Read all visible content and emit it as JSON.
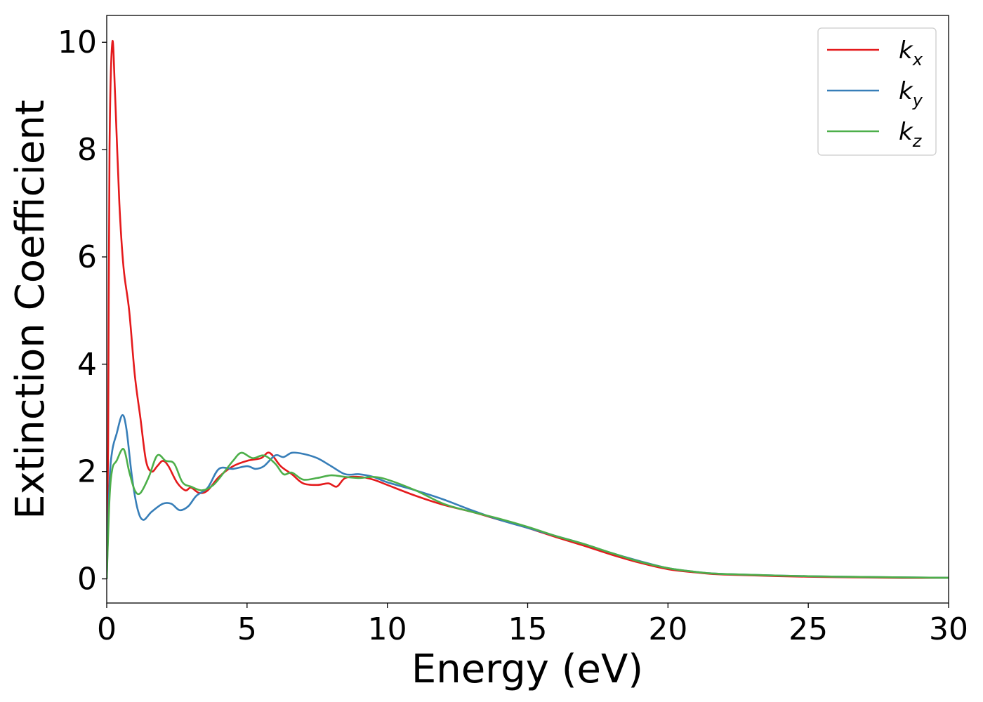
{
  "chart_data": {
    "type": "line",
    "title": "",
    "xlabel": "Energy (eV)",
    "ylabel": "Extinction Coefficient",
    "xlim": [
      0,
      30
    ],
    "ylim": [
      -0.45,
      10.5
    ],
    "xticks": [
      0,
      5,
      10,
      15,
      20,
      25,
      30
    ],
    "yticks": [
      0,
      2,
      4,
      6,
      8,
      10
    ],
    "grid": false,
    "legend_position": "top-right",
    "series": [
      {
        "name": "k",
        "subscript": "x",
        "color": "#e41a1c",
        "points": [
          [
            0,
            0
          ],
          [
            0.05,
            2.5
          ],
          [
            0.1,
            8
          ],
          [
            0.2,
            10
          ],
          [
            0.3,
            9
          ],
          [
            0.45,
            7
          ],
          [
            0.6,
            5.8
          ],
          [
            0.8,
            5
          ],
          [
            1.0,
            3.8
          ],
          [
            1.2,
            3
          ],
          [
            1.4,
            2.2
          ],
          [
            1.6,
            2.0
          ],
          [
            1.8,
            2.1
          ],
          [
            2.0,
            2.2
          ],
          [
            2.2,
            2.1
          ],
          [
            2.5,
            1.8
          ],
          [
            2.8,
            1.65
          ],
          [
            3.0,
            1.7
          ],
          [
            3.3,
            1.6
          ],
          [
            3.6,
            1.65
          ],
          [
            4.0,
            1.9
          ],
          [
            4.5,
            2.1
          ],
          [
            5.0,
            2.2
          ],
          [
            5.5,
            2.25
          ],
          [
            5.8,
            2.35
          ],
          [
            6.2,
            2.1
          ],
          [
            6.6,
            1.95
          ],
          [
            7.0,
            1.78
          ],
          [
            7.5,
            1.75
          ],
          [
            7.9,
            1.78
          ],
          [
            8.2,
            1.72
          ],
          [
            8.5,
            1.88
          ],
          [
            9.0,
            1.9
          ],
          [
            9.5,
            1.85
          ],
          [
            10,
            1.75
          ],
          [
            11,
            1.55
          ],
          [
            12,
            1.38
          ],
          [
            13,
            1.25
          ],
          [
            14,
            1.1
          ],
          [
            15,
            0.95
          ],
          [
            16,
            0.78
          ],
          [
            17,
            0.62
          ],
          [
            18,
            0.45
          ],
          [
            19,
            0.3
          ],
          [
            20,
            0.18
          ],
          [
            21,
            0.12
          ],
          [
            22,
            0.08
          ],
          [
            25,
            0.04
          ],
          [
            28,
            0.02
          ],
          [
            30,
            0.02
          ]
        ]
      },
      {
        "name": "k",
        "subscript": "y",
        "color": "#377eb8",
        "points": [
          [
            0,
            0
          ],
          [
            0.1,
            1.8
          ],
          [
            0.2,
            2.4
          ],
          [
            0.35,
            2.7
          ],
          [
            0.55,
            3.05
          ],
          [
            0.7,
            2.8
          ],
          [
            0.9,
            1.9
          ],
          [
            1.1,
            1.3
          ],
          [
            1.3,
            1.1
          ],
          [
            1.6,
            1.25
          ],
          [
            2.0,
            1.4
          ],
          [
            2.3,
            1.4
          ],
          [
            2.6,
            1.28
          ],
          [
            2.9,
            1.35
          ],
          [
            3.2,
            1.55
          ],
          [
            3.6,
            1.7
          ],
          [
            4.0,
            2.05
          ],
          [
            4.5,
            2.05
          ],
          [
            5.0,
            2.1
          ],
          [
            5.3,
            2.05
          ],
          [
            5.6,
            2.1
          ],
          [
            6.0,
            2.3
          ],
          [
            6.3,
            2.27
          ],
          [
            6.6,
            2.35
          ],
          [
            7.0,
            2.33
          ],
          [
            7.5,
            2.25
          ],
          [
            8.0,
            2.1
          ],
          [
            8.5,
            1.95
          ],
          [
            9.0,
            1.95
          ],
          [
            9.5,
            1.9
          ],
          [
            10,
            1.8
          ],
          [
            11,
            1.65
          ],
          [
            12,
            1.48
          ],
          [
            13,
            1.28
          ],
          [
            14,
            1.1
          ],
          [
            15,
            0.95
          ],
          [
            16,
            0.8
          ],
          [
            17,
            0.65
          ],
          [
            18,
            0.48
          ],
          [
            19,
            0.33
          ],
          [
            20,
            0.2
          ],
          [
            21,
            0.13
          ],
          [
            22,
            0.09
          ],
          [
            25,
            0.05
          ],
          [
            28,
            0.03
          ],
          [
            30,
            0.02
          ]
        ]
      },
      {
        "name": "k",
        "subscript": "z",
        "color": "#4daf4a",
        "points": [
          [
            0,
            0
          ],
          [
            0.1,
            1.5
          ],
          [
            0.2,
            2.05
          ],
          [
            0.35,
            2.2
          ],
          [
            0.6,
            2.42
          ],
          [
            0.8,
            2.0
          ],
          [
            1.0,
            1.65
          ],
          [
            1.2,
            1.6
          ],
          [
            1.5,
            1.9
          ],
          [
            1.8,
            2.3
          ],
          [
            2.1,
            2.2
          ],
          [
            2.4,
            2.15
          ],
          [
            2.7,
            1.8
          ],
          [
            3.0,
            1.72
          ],
          [
            3.4,
            1.65
          ],
          [
            3.8,
            1.75
          ],
          [
            4.2,
            2.0
          ],
          [
            4.5,
            2.2
          ],
          [
            4.8,
            2.35
          ],
          [
            5.2,
            2.25
          ],
          [
            5.6,
            2.3
          ],
          [
            6.0,
            2.15
          ],
          [
            6.3,
            1.95
          ],
          [
            6.6,
            1.98
          ],
          [
            7.0,
            1.85
          ],
          [
            7.5,
            1.88
          ],
          [
            8.0,
            1.93
          ],
          [
            8.5,
            1.9
          ],
          [
            9.0,
            1.88
          ],
          [
            9.5,
            1.9
          ],
          [
            10,
            1.85
          ],
          [
            11,
            1.65
          ],
          [
            12,
            1.4
          ],
          [
            13,
            1.25
          ],
          [
            14,
            1.12
          ],
          [
            15,
            0.97
          ],
          [
            16,
            0.8
          ],
          [
            17,
            0.65
          ],
          [
            18,
            0.48
          ],
          [
            19,
            0.32
          ],
          [
            20,
            0.2
          ],
          [
            21,
            0.13
          ],
          [
            22,
            0.09
          ],
          [
            25,
            0.05
          ],
          [
            28,
            0.03
          ],
          [
            30,
            0.02
          ]
        ]
      }
    ]
  }
}
